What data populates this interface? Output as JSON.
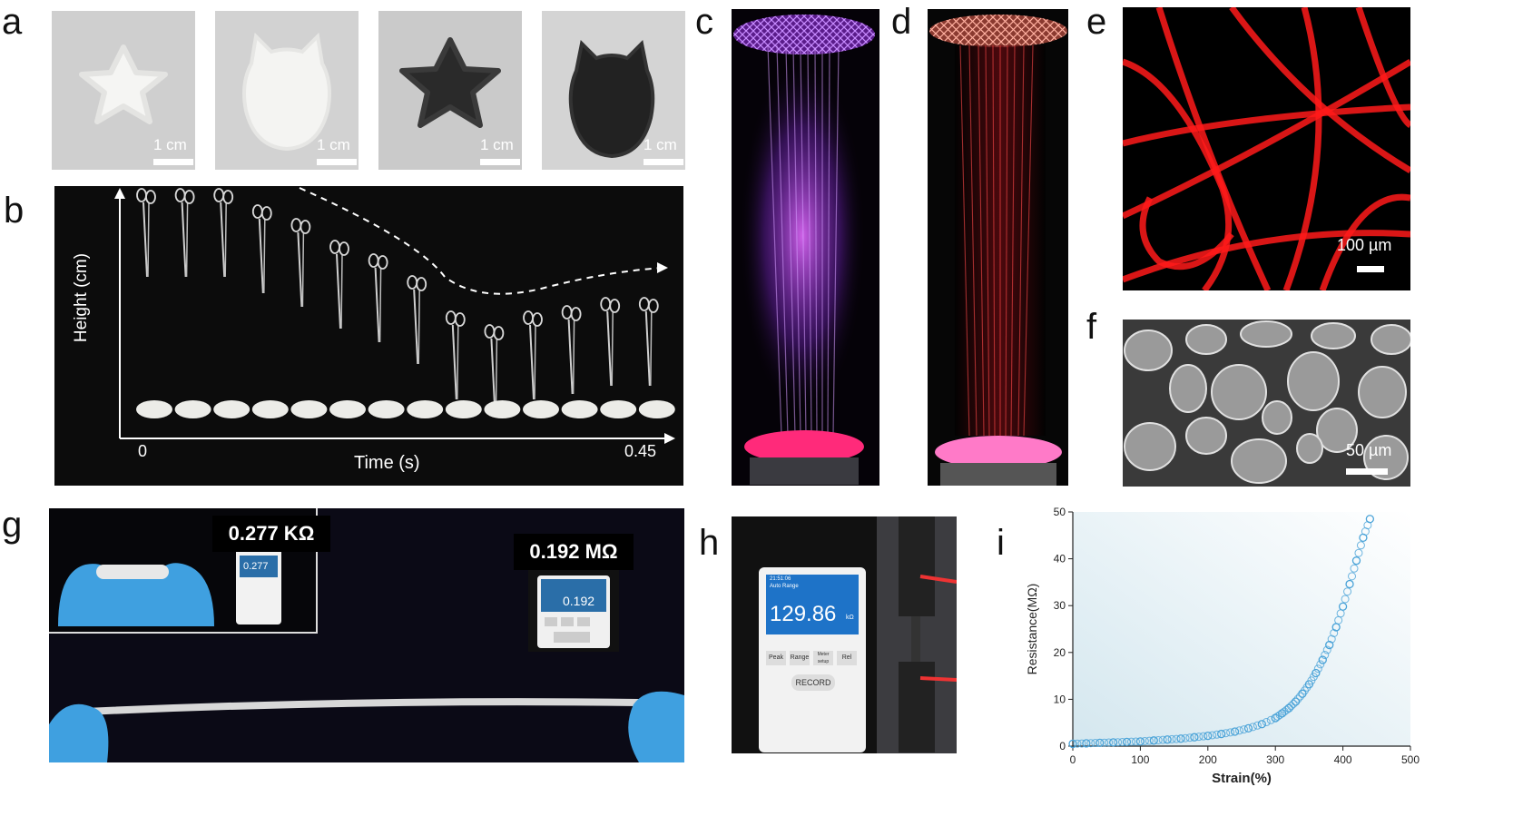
{
  "panels": {
    "a": {
      "label": "a",
      "images": [
        {
          "shape": "star",
          "material": "white",
          "scale_bar": "1 cm"
        },
        {
          "shape": "cat-head",
          "material": "white",
          "scale_bar": "1 cm"
        },
        {
          "shape": "star",
          "material": "black",
          "scale_bar": "1 cm"
        },
        {
          "shape": "cat-head",
          "material": "black",
          "scale_bar": "1 cm"
        }
      ]
    },
    "b": {
      "label": "b",
      "ylabel": "Height (cm)",
      "xlabel": "Time (s)",
      "x_start": "0",
      "x_end": "0.45",
      "frames": [
        {
          "height": 0.0
        },
        {
          "height": 0.0
        },
        {
          "height": 0.0
        },
        {
          "height": 0.12
        },
        {
          "height": 0.22
        },
        {
          "height": 0.38
        },
        {
          "height": 0.48
        },
        {
          "height": 0.64
        },
        {
          "height": 0.9
        },
        {
          "height": 1.0
        },
        {
          "height": 0.9
        },
        {
          "height": 0.86
        },
        {
          "height": 0.8
        },
        {
          "height": 0.8
        }
      ]
    },
    "c": {
      "label": "c"
    },
    "d": {
      "label": "d"
    },
    "e": {
      "label": "e",
      "scale_bar": "100 µm"
    },
    "f": {
      "label": "f",
      "scale_bar": "50 µm"
    },
    "g": {
      "label": "g",
      "reading_1": "0.277 KΩ",
      "reading_2": "0.192 MΩ",
      "meter_1": "0.277",
      "meter_2": "0.192"
    },
    "h": {
      "label": "h",
      "meter_value": "129.86",
      "meter_unit": "kΩ",
      "meter_button": "RECORD",
      "meter_header_1": "21:51:06",
      "meter_header_2": "Auto Range",
      "meter_keys": [
        "Peak",
        "Range",
        "Meter setup",
        "Rel"
      ]
    },
    "i": {
      "label": "i"
    }
  },
  "chart_data": {
    "type": "scatter",
    "xlabel": "Strain(%)",
    "ylabel": "Resistance(MΩ)",
    "xlim": [
      0,
      500
    ],
    "ylim": [
      0,
      50
    ],
    "xticks": [
      0,
      100,
      200,
      300,
      400,
      500
    ],
    "yticks": [
      0,
      10,
      20,
      30,
      40,
      50
    ],
    "marker_color": "#4aa3d8",
    "series": [
      {
        "x": [
          0,
          20,
          40,
          60,
          80,
          100,
          120,
          140,
          160,
          180,
          200,
          220,
          240,
          260,
          280,
          300,
          310,
          320,
          330,
          340,
          350,
          360,
          370,
          380,
          390,
          400,
          410,
          420,
          430,
          440
        ],
        "y": [
          0.5,
          0.6,
          0.7,
          0.8,
          0.9,
          1.0,
          1.2,
          1.4,
          1.6,
          1.9,
          2.2,
          2.6,
          3.1,
          3.8,
          4.7,
          6.0,
          7.0,
          8.1,
          9.5,
          11.2,
          13.2,
          15.6,
          18.4,
          21.6,
          25.4,
          29.8,
          34.6,
          39.6,
          44.5,
          48.5
        ]
      }
    ]
  }
}
